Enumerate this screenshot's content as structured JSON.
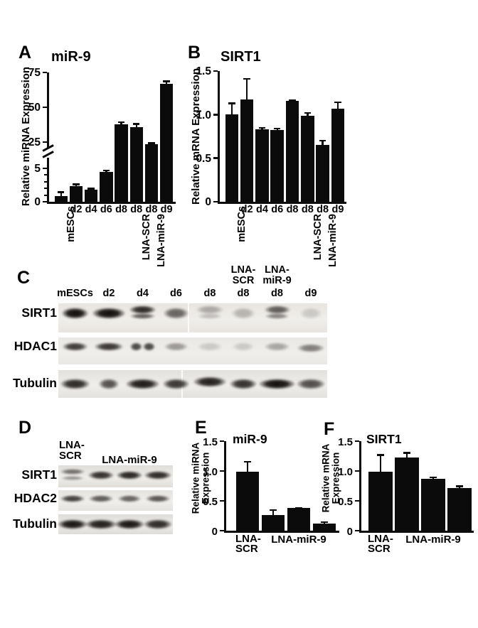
{
  "figure": {
    "background": "#ffffff",
    "bar_color": "#0b0b0b",
    "text_color": "#000000"
  },
  "chart_data": [
    {
      "panel": "A",
      "type": "bar",
      "title": "miR-9",
      "ylabel": "Relative miRNA Expression",
      "categories": [
        "mESCs",
        "d2",
        "d4",
        "d6",
        "d8",
        "d8",
        "d8",
        "d9"
      ],
      "rotated_category_indexes": [
        0
      ],
      "group_labels": [
        {
          "bar_index": 5,
          "label": "LNA-SCR"
        },
        {
          "bar_index": 6,
          "label": "LNA-miR-9"
        }
      ],
      "values": [
        0.8,
        2.3,
        1.8,
        4.5,
        38,
        35.7,
        23.2,
        67
      ],
      "errors": [
        0.75,
        0.45,
        0.3,
        0.3,
        1.8,
        2.9,
        1.7,
        2.2
      ],
      "yticks": [
        0,
        5,
        25,
        50,
        75
      ],
      "ytick_labels": [
        "0",
        "5",
        "25",
        "50",
        "75"
      ],
      "minor_yticks": [
        1,
        2,
        3,
        4
      ],
      "axis_break": true,
      "ylim_segments": [
        [
          0,
          5
        ],
        [
          25,
          75
        ]
      ],
      "grid": false,
      "legend": null
    },
    {
      "panel": "B",
      "type": "bar",
      "title": "SIRT1",
      "ylabel": "Relative mRNA Expression",
      "categories": [
        "mESCs",
        "d2",
        "d4",
        "d6",
        "d8",
        "d8",
        "d8",
        "d9"
      ],
      "rotated_category_indexes": [
        0
      ],
      "group_labels": [
        {
          "bar_index": 5,
          "label": "LNA-SCR"
        },
        {
          "bar_index": 6,
          "label": "LNA-miR-9"
        }
      ],
      "values": [
        1.0,
        1.17,
        0.83,
        0.82,
        1.16,
        0.99,
        0.65,
        1.07
      ],
      "errors": [
        0.14,
        0.25,
        0.03,
        0.03,
        0.01,
        0.04,
        0.06,
        0.08
      ],
      "yticks": [
        0,
        0.5,
        1.0,
        1.5
      ],
      "ytick_labels": [
        "0",
        "0.5",
        "1.0",
        "1.5"
      ],
      "ylim": [
        0,
        1.5
      ],
      "grid": false,
      "legend": null
    },
    {
      "panel": "E",
      "type": "bar",
      "title": "miR-9",
      "ylabel": "Relative miRNA\nExpression",
      "xlabels": [
        {
          "lines": [
            "LNA-",
            "SCR"
          ],
          "bars": [
            0
          ]
        },
        {
          "lines": [
            "LNA-miR-9"
          ],
          "bars": [
            1,
            2,
            3
          ]
        }
      ],
      "values": [
        0.99,
        0.26,
        0.38,
        0.12
      ],
      "errors": [
        0.18,
        0.1,
        0.015,
        0.04
      ],
      "yticks": [
        0,
        0.5,
        1.0,
        1.5
      ],
      "ytick_labels": [
        "0",
        "0.5",
        "1.0",
        "1.5"
      ],
      "ylim": [
        0,
        1.5
      ],
      "grid": false,
      "legend": null
    },
    {
      "panel": "F",
      "type": "bar",
      "title": "SIRT1",
      "ylabel": "Relative mRNA\nExpression",
      "xlabels": [
        {
          "lines": [
            "LNA-",
            "SCR"
          ],
          "bars": [
            0
          ]
        },
        {
          "lines": [
            "LNA-miR-9"
          ],
          "bars": [
            1,
            2,
            3
          ]
        }
      ],
      "values": [
        0.99,
        1.23,
        0.87,
        0.71
      ],
      "errors": [
        0.29,
        0.09,
        0.04,
        0.05
      ],
      "yticks": [
        0,
        0.5,
        1.0,
        1.5
      ],
      "ytick_labels": [
        "0",
        "0.5",
        "1.0",
        "1.5"
      ],
      "ylim": [
        0,
        1.5
      ],
      "grid": false,
      "legend": null
    }
  ],
  "blots": {
    "C": {
      "panel": "C",
      "lane_labels": [
        "mESCs",
        "d2",
        "d4",
        "d6",
        "d8",
        "d8",
        "d8",
        "d9"
      ],
      "lane_headers": [
        {
          "lane": 5,
          "lines": [
            "LNA-",
            "SCR"
          ]
        },
        {
          "lane": 6,
          "lines": [
            "LNA-",
            "miR-9"
          ]
        }
      ],
      "rows": [
        {
          "label": "SIRT1",
          "bands": [
            {
              "v": 1,
              "w": 1.05
            },
            {
              "v": 1,
              "w": 1.3
            },
            {
              "v": 0.88,
              "w": 1.05,
              "double": true
            },
            {
              "v": 0.62,
              "w": 0.95
            },
            {
              "v": 0.3,
              "w": 1.05,
              "double": true
            },
            {
              "v": 0.25,
              "w": 0.9
            },
            {
              "v": 0.65,
              "w": 1,
              "double": true
            },
            {
              "v": 0.16,
              "w": 0.85
            }
          ]
        },
        {
          "label": "HDAC1",
          "bands": [
            {
              "v": 0.8,
              "w": 0.95
            },
            {
              "v": 0.82,
              "w": 1.1
            },
            {
              "v": 0.75,
              "w": 1,
              "split": true
            },
            {
              "v": 0.38,
              "w": 0.9
            },
            {
              "v": 0.16,
              "w": 0.95
            },
            {
              "v": 0.16,
              "w": 0.85
            },
            {
              "v": 0.32,
              "w": 0.95
            },
            {
              "v": 0.5,
              "w": 1.05,
              "dy": 2
            }
          ]
        },
        {
          "label": "Tubulin",
          "bands": [
            {
              "v": 0.88,
              "w": 1.1
            },
            {
              "v": 0.7,
              "w": 0.75
            },
            {
              "v": 0.95,
              "w": 1.25
            },
            {
              "v": 0.82,
              "w": 0.95
            },
            {
              "v": 0.92,
              "w": 1.2,
              "dy": -3
            },
            {
              "v": 0.85,
              "w": 1
            },
            {
              "v": 1,
              "w": 1.35
            },
            {
              "v": 0.72,
              "w": 1.05
            }
          ]
        }
      ]
    },
    "D": {
      "panel": "D",
      "lane_headers": [
        {
          "lines": [
            "LNA-",
            "SCR"
          ]
        },
        {
          "lines": [
            "LNA-miR-9"
          ]
        }
      ],
      "rows": [
        {
          "label": "SIRT1",
          "bands": [
            {
              "v": 0.55,
              "w": 1,
              "double": true
            },
            {
              "v": 0.85,
              "w": 1.05
            },
            {
              "v": 0.9,
              "w": 1.05
            },
            {
              "v": 0.88,
              "w": 1.1
            }
          ]
        },
        {
          "label": "HDAC2",
          "bands": [
            {
              "v": 0.78,
              "w": 1
            },
            {
              "v": 0.65,
              "w": 1
            },
            {
              "v": 0.62,
              "w": 0.95
            },
            {
              "v": 0.68,
              "w": 1
            }
          ]
        },
        {
          "label": "Tubulin",
          "bands": [
            {
              "v": 0.97,
              "w": 1.15
            },
            {
              "v": 0.93,
              "w": 1.2
            },
            {
              "v": 0.97,
              "w": 1.15
            },
            {
              "v": 0.88,
              "w": 1.1
            }
          ]
        }
      ]
    }
  }
}
